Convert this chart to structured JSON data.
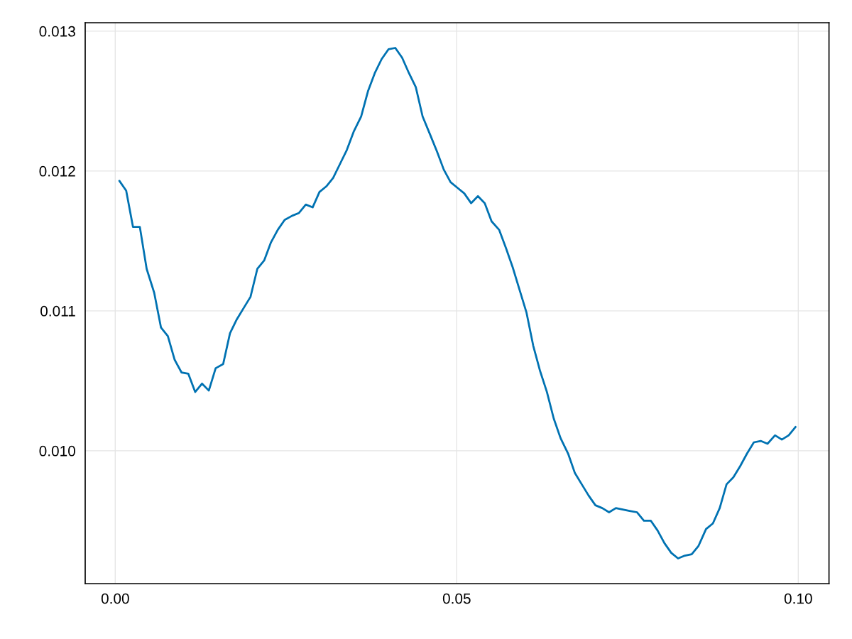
{
  "chart_data": {
    "type": "line",
    "x": [
      0.0006,
      0.0016,
      0.0026,
      0.0036,
      0.0046,
      0.0057,
      0.0067,
      0.0077,
      0.0087,
      0.0097,
      0.0107,
      0.0117,
      0.0127,
      0.0137,
      0.0147,
      0.0158,
      0.0168,
      0.0178,
      0.0188,
      0.0198,
      0.0208,
      0.0218,
      0.0228,
      0.0238,
      0.0248,
      0.0259,
      0.0269,
      0.0279,
      0.0289,
      0.0299,
      0.0309,
      0.0319,
      0.0329,
      0.0339,
      0.0349,
      0.036,
      0.037,
      0.038,
      0.039,
      0.04,
      0.041,
      0.042,
      0.043,
      0.044,
      0.045,
      0.0461,
      0.0471,
      0.0481,
      0.0491,
      0.0501,
      0.0511,
      0.0521,
      0.0531,
      0.0541,
      0.0551,
      0.0562,
      0.0572,
      0.0582,
      0.0592,
      0.0602,
      0.0612,
      0.0622,
      0.0632,
      0.0642,
      0.0652,
      0.0663,
      0.0673,
      0.0683,
      0.0693,
      0.0703,
      0.0713,
      0.0723,
      0.0733,
      0.0743,
      0.0753,
      0.0764,
      0.0774,
      0.0784,
      0.0794,
      0.0804,
      0.0814,
      0.0824,
      0.0834,
      0.0844,
      0.0854,
      0.0865,
      0.0875,
      0.0885,
      0.0895,
      0.0905,
      0.0915,
      0.0925,
      0.0935,
      0.0945,
      0.0955,
      0.0966,
      0.0976,
      0.0986,
      0.0996
    ],
    "series": [
      {
        "color": "#0072b2",
        "values": [
          0.01193,
          0.01186,
          0.0116,
          0.0116,
          0.0113,
          0.01113,
          0.01088,
          0.01082,
          0.01065,
          0.01056,
          0.01055,
          0.01042,
          0.01048,
          0.01043,
          0.01059,
          0.01062,
          0.01084,
          0.01094,
          0.01102,
          0.0111,
          0.0113,
          0.01136,
          0.01149,
          0.01158,
          0.01165,
          0.01168,
          0.0117,
          0.01176,
          0.01174,
          0.01185,
          0.01189,
          0.01195,
          0.01205,
          0.01215,
          0.01228,
          0.01239,
          0.01257,
          0.0127,
          0.0128,
          0.01287,
          0.01288,
          0.01281,
          0.0127,
          0.0126,
          0.01239,
          0.01226,
          0.01214,
          0.01201,
          0.01192,
          0.01188,
          0.01184,
          0.01177,
          0.01182,
          0.01177,
          0.01164,
          0.01158,
          0.01145,
          0.01131,
          0.01115,
          0.01099,
          0.01075,
          0.01057,
          0.01042,
          0.01023,
          0.01009,
          0.00998,
          0.00984,
          0.00976,
          0.00968,
          0.00961,
          0.00959,
          0.00956,
          0.00959,
          0.00958,
          0.00957,
          0.00956,
          0.0095,
          0.0095,
          0.00943,
          0.00934,
          0.00927,
          0.00923,
          0.00925,
          0.00926,
          0.00932,
          0.00944,
          0.00948,
          0.00959,
          0.00976,
          0.00981,
          0.00989,
          0.00998,
          0.01006,
          0.01007,
          0.01005,
          0.01011,
          0.01008,
          0.01011,
          0.01017
        ]
      }
    ],
    "xlim": [
      -0.0044,
      0.1045
    ],
    "ylim": [
      0.00905,
      0.01306
    ],
    "xticks": [
      {
        "value": 0,
        "label": "0.00"
      },
      0.05,
      {
        "value": 0.1,
        "label": "0.10"
      }
    ],
    "yticks": [
      {
        "value": 0.01,
        "label": "0.010"
      },
      0.011,
      0.012,
      0.013
    ],
    "grid": true,
    "line_style": "solid"
  }
}
